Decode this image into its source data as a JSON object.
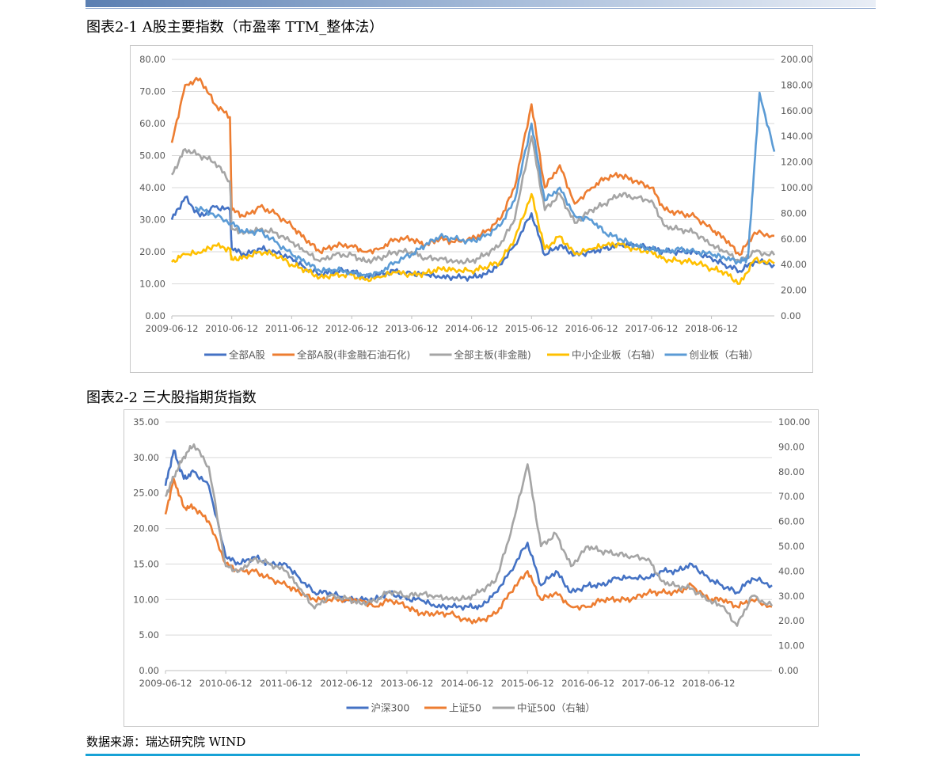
{
  "figure1": {
    "title": "图表2-1 A股主要指数（市盈率 TTM_整体法）",
    "chart_data": {
      "type": "line",
      "x_ticks": [
        "2009-06-12",
        "2010-06-12",
        "2011-06-12",
        "2012-06-12",
        "2013-06-12",
        "2014-06-12",
        "2015-06-12",
        "2016-06-12",
        "2017-06-12",
        "2018-06-12"
      ],
      "x_range": [
        "2009-06-12",
        "2019-06-30"
      ],
      "y_left": {
        "min": 0,
        "max": 80,
        "ticks": [
          "0.00",
          "10.00",
          "20.00",
          "30.00",
          "40.00",
          "50.00",
          "60.00",
          "70.00",
          "80.00"
        ]
      },
      "y_right": {
        "min": 0,
        "max": 200,
        "ticks": [
          "0.00",
          "20.00",
          "40.00",
          "60.00",
          "80.00",
          "100.00",
          "120.00",
          "140.00",
          "160.00",
          "180.00",
          "200.00"
        ]
      },
      "grid": true,
      "legend_position": "bottom",
      "series": [
        {
          "name": "全部A股",
          "axis": "left",
          "color": "#4472c4",
          "x": [
            "2009-06-12",
            "2009-09-01",
            "2009-12-01",
            "2010-03-01",
            "2010-06-01",
            "2010-06-12",
            "2010-09-01",
            "2010-12-01",
            "2011-03-01",
            "2011-06-12",
            "2011-09-01",
            "2011-12-01",
            "2012-03-01",
            "2012-06-12",
            "2012-09-01",
            "2012-12-01",
            "2013-03-01",
            "2013-06-12",
            "2013-09-01",
            "2013-12-01",
            "2014-03-01",
            "2014-06-12",
            "2014-09-01",
            "2014-12-01",
            "2015-03-01",
            "2015-06-12",
            "2015-09-01",
            "2015-12-01",
            "2016-03-01",
            "2016-06-12",
            "2016-09-01",
            "2016-12-01",
            "2017-03-01",
            "2017-06-12",
            "2017-09-01",
            "2017-12-01",
            "2018-03-01",
            "2018-06-12",
            "2018-09-01",
            "2018-12-01",
            "2019-03-01",
            "2019-06-30"
          ],
          "y": [
            30,
            37,
            31,
            34,
            33,
            21,
            19,
            21,
            20,
            18,
            15,
            13,
            14,
            14,
            12,
            13,
            14,
            13,
            13,
            12,
            12,
            12,
            13,
            16,
            22,
            32,
            19,
            22,
            19,
            20,
            21,
            22,
            22,
            21,
            20,
            20,
            20,
            18,
            16,
            14,
            17,
            16
          ]
        },
        {
          "name": "全部A股(非金融石油石化)",
          "axis": "left",
          "color": "#ed7d31",
          "x": [
            "2009-06-12",
            "2009-09-01",
            "2009-12-01",
            "2010-03-01",
            "2010-06-01",
            "2010-06-12",
            "2010-09-01",
            "2010-12-01",
            "2011-03-01",
            "2011-06-12",
            "2011-09-01",
            "2011-12-01",
            "2012-03-01",
            "2012-06-12",
            "2012-09-01",
            "2012-12-01",
            "2013-03-01",
            "2013-06-12",
            "2013-09-01",
            "2013-12-01",
            "2014-03-01",
            "2014-06-12",
            "2014-09-01",
            "2014-12-01",
            "2015-03-01",
            "2015-06-12",
            "2015-09-01",
            "2015-12-01",
            "2016-03-01",
            "2016-06-12",
            "2016-09-01",
            "2016-12-01",
            "2017-03-01",
            "2017-06-12",
            "2017-09-01",
            "2017-12-01",
            "2018-03-01",
            "2018-06-12",
            "2018-09-01",
            "2018-12-01",
            "2019-03-01",
            "2019-06-30"
          ],
          "y": [
            54,
            72,
            74,
            66,
            62,
            33,
            31,
            34,
            32,
            28,
            24,
            20,
            22,
            22,
            20,
            21,
            24,
            24,
            22,
            24,
            23,
            24,
            26,
            30,
            40,
            66,
            40,
            47,
            35,
            40,
            43,
            44,
            42,
            40,
            33,
            32,
            31,
            27,
            24,
            19,
            26,
            25
          ]
        },
        {
          "name": "全部主板(非金融)",
          "axis": "left",
          "color": "#a5a5a5",
          "x": [
            "2009-06-12",
            "2009-09-01",
            "2009-12-01",
            "2010-03-01",
            "2010-06-01",
            "2010-06-12",
            "2010-09-01",
            "2010-12-01",
            "2011-03-01",
            "2011-06-12",
            "2011-09-01",
            "2011-12-01",
            "2012-03-01",
            "2012-06-12",
            "2012-09-01",
            "2012-12-01",
            "2013-03-01",
            "2013-06-12",
            "2013-09-01",
            "2013-12-01",
            "2014-03-01",
            "2014-06-12",
            "2014-09-01",
            "2014-12-01",
            "2015-03-01",
            "2015-06-12",
            "2015-09-01",
            "2015-12-01",
            "2016-03-01",
            "2016-06-12",
            "2016-09-01",
            "2016-12-01",
            "2017-03-01",
            "2017-06-12",
            "2017-09-01",
            "2017-12-01",
            "2018-03-01",
            "2018-06-12",
            "2018-09-01",
            "2018-12-01",
            "2019-03-01",
            "2019-06-30"
          ],
          "y": [
            44,
            52,
            50,
            48,
            42,
            27,
            26,
            27,
            26,
            23,
            20,
            17,
            19,
            19,
            17,
            18,
            20,
            20,
            18,
            18,
            17,
            17,
            19,
            22,
            30,
            56,
            33,
            38,
            29,
            33,
            35,
            38,
            37,
            36,
            28,
            27,
            26,
            22,
            20,
            17,
            20,
            19
          ]
        },
        {
          "name": "中小企业板（右轴）",
          "axis": "right",
          "color": "#ffc000",
          "x": [
            "2009-06-12",
            "2009-09-01",
            "2009-12-01",
            "2010-03-01",
            "2010-06-01",
            "2010-06-12",
            "2010-09-01",
            "2010-12-01",
            "2011-03-01",
            "2011-06-12",
            "2011-09-01",
            "2011-12-01",
            "2012-03-01",
            "2012-06-12",
            "2012-09-01",
            "2012-12-01",
            "2013-03-01",
            "2013-06-12",
            "2013-09-01",
            "2013-12-01",
            "2014-03-01",
            "2014-06-12",
            "2014-09-01",
            "2014-12-01",
            "2015-03-01",
            "2015-06-12",
            "2015-09-01",
            "2015-12-01",
            "2016-03-01",
            "2016-06-12",
            "2016-09-01",
            "2016-12-01",
            "2017-03-01",
            "2017-06-12",
            "2017-09-01",
            "2017-12-01",
            "2018-03-01",
            "2018-06-12",
            "2018-09-01",
            "2018-12-01",
            "2019-03-01",
            "2019-06-30"
          ],
          "y": [
            42,
            48,
            49,
            55,
            52,
            44,
            46,
            50,
            48,
            40,
            36,
            30,
            32,
            32,
            28,
            30,
            34,
            32,
            33,
            37,
            36,
            35,
            38,
            42,
            60,
            95,
            52,
            62,
            48,
            52,
            55,
            56,
            52,
            50,
            44,
            43,
            42,
            37,
            34,
            25,
            44,
            41
          ]
        },
        {
          "name": "创业板（右轴）",
          "axis": "right",
          "color": "#5b9bd5",
          "x": [
            "2009-11-01",
            "2010-02-01",
            "2010-06-12",
            "2010-09-01",
            "2010-12-01",
            "2011-03-01",
            "2011-06-12",
            "2011-09-01",
            "2011-12-01",
            "2012-03-01",
            "2012-06-12",
            "2012-09-01",
            "2012-12-01",
            "2013-03-01",
            "2013-06-12",
            "2013-09-01",
            "2013-12-01",
            "2014-03-01",
            "2014-06-12",
            "2014-09-01",
            "2014-12-01",
            "2015-03-01",
            "2015-06-12",
            "2015-09-01",
            "2015-12-01",
            "2016-03-01",
            "2016-06-12",
            "2016-09-01",
            "2016-12-01",
            "2017-03-01",
            "2017-06-12",
            "2017-09-01",
            "2017-12-01",
            "2018-03-01",
            "2018-06-12",
            "2018-09-01",
            "2018-12-01",
            "2019-01-20",
            "2019-03-01",
            "2019-04-01",
            "2019-06-30"
          ],
          "y": [
            85,
            80,
            72,
            65,
            66,
            58,
            48,
            42,
            35,
            36,
            34,
            32,
            34,
            42,
            48,
            55,
            62,
            60,
            58,
            62,
            70,
            90,
            150,
            90,
            100,
            78,
            75,
            65,
            60,
            55,
            52,
            50,
            52,
            50,
            48,
            45,
            42,
            45,
            118,
            174,
            128
          ]
        }
      ]
    }
  },
  "figure2": {
    "title": "图表2-2 三大股指期货指数",
    "chart_data": {
      "type": "line",
      "x_ticks": [
        "2009-06-12",
        "2010-06-12",
        "2011-06-12",
        "2012-06-12",
        "2013-06-12",
        "2014-06-12",
        "2015-06-12",
        "2016-06-12",
        "2017-06-12",
        "2018-06-12"
      ],
      "x_range": [
        "2009-06-12",
        "2019-06-30"
      ],
      "y_left": {
        "min": 0,
        "max": 35,
        "ticks": [
          "0.00",
          "5.00",
          "10.00",
          "15.00",
          "20.00",
          "25.00",
          "30.00",
          "35.00"
        ]
      },
      "y_right": {
        "min": 0,
        "max": 100,
        "ticks": [
          "0.00",
          "10.00",
          "20.00",
          "30.00",
          "40.00",
          "50.00",
          "60.00",
          "70.00",
          "80.00",
          "90.00",
          "100.00"
        ]
      },
      "grid": true,
      "legend_position": "bottom",
      "series": [
        {
          "name": "沪深300",
          "axis": "left",
          "color": "#4472c4",
          "x": [
            "2009-06-12",
            "2009-08-01",
            "2009-10-01",
            "2009-12-01",
            "2010-03-01",
            "2010-06-12",
            "2010-09-01",
            "2010-12-01",
            "2011-03-01",
            "2011-06-12",
            "2011-09-01",
            "2011-12-01",
            "2012-03-01",
            "2012-06-12",
            "2012-09-01",
            "2012-12-01",
            "2013-03-01",
            "2013-06-12",
            "2013-09-01",
            "2013-12-01",
            "2014-03-01",
            "2014-06-12",
            "2014-09-01",
            "2014-12-01",
            "2015-03-01",
            "2015-06-12",
            "2015-09-01",
            "2015-12-01",
            "2016-03-01",
            "2016-06-12",
            "2016-09-01",
            "2016-12-01",
            "2017-03-01",
            "2017-06-12",
            "2017-09-01",
            "2017-12-01",
            "2018-03-01",
            "2018-06-12",
            "2018-09-01",
            "2018-12-01",
            "2019-03-01",
            "2019-06-30"
          ],
          "y": [
            26,
            31,
            27,
            28,
            26,
            16,
            15,
            16,
            15,
            15,
            13,
            11,
            11,
            10,
            10,
            10,
            11,
            10,
            10,
            9,
            9,
            9,
            9,
            11,
            14,
            18,
            12,
            14,
            11,
            12,
            12,
            13,
            13,
            13,
            14,
            14,
            15,
            13,
            12,
            11,
            13,
            12
          ]
        },
        {
          "name": "上证50",
          "axis": "left",
          "color": "#ed7d31",
          "x": [
            "2009-06-12",
            "2009-08-01",
            "2009-10-01",
            "2009-12-01",
            "2010-03-01",
            "2010-06-12",
            "2010-09-01",
            "2010-12-01",
            "2011-03-01",
            "2011-06-12",
            "2011-09-01",
            "2011-12-01",
            "2012-03-01",
            "2012-06-12",
            "2012-09-01",
            "2012-12-01",
            "2013-03-01",
            "2013-06-12",
            "2013-09-01",
            "2013-12-01",
            "2014-03-01",
            "2014-06-12",
            "2014-09-01",
            "2014-12-01",
            "2015-03-01",
            "2015-06-12",
            "2015-09-01",
            "2015-12-01",
            "2016-03-01",
            "2016-06-12",
            "2016-09-01",
            "2016-12-01",
            "2017-03-01",
            "2017-06-12",
            "2017-09-01",
            "2017-12-01",
            "2018-03-01",
            "2018-06-12",
            "2018-09-01",
            "2018-12-01",
            "2019-03-01",
            "2019-06-30"
          ],
          "y": [
            22,
            27,
            23,
            23,
            21,
            15,
            14,
            14,
            13,
            12,
            11,
            10,
            10,
            10,
            10,
            9,
            10,
            9,
            8,
            8,
            8,
            7,
            7,
            8,
            11,
            14,
            10,
            11,
            9,
            9,
            10,
            10,
            10,
            11,
            11,
            11,
            12,
            10,
            10,
            9,
            10,
            9
          ]
        },
        {
          "name": "中证500（右轴）",
          "axis": "right",
          "color": "#a5a5a5",
          "x": [
            "2009-06-12",
            "2009-08-01",
            "2009-10-01",
            "2009-12-01",
            "2010-03-01",
            "2010-06-12",
            "2010-09-01",
            "2010-12-01",
            "2011-03-01",
            "2011-06-12",
            "2011-09-01",
            "2011-12-01",
            "2012-03-01",
            "2012-06-12",
            "2012-09-01",
            "2012-12-01",
            "2013-03-01",
            "2013-06-12",
            "2013-09-01",
            "2013-12-01",
            "2014-03-01",
            "2014-06-12",
            "2014-09-01",
            "2014-12-01",
            "2015-03-01",
            "2015-06-12",
            "2015-09-01",
            "2015-12-01",
            "2016-03-01",
            "2016-06-12",
            "2016-09-01",
            "2016-12-01",
            "2017-03-01",
            "2017-06-12",
            "2017-09-01",
            "2017-12-01",
            "2018-03-01",
            "2018-06-12",
            "2018-09-01",
            "2018-12-01",
            "2019-03-01",
            "2019-06-30"
          ],
          "y": [
            70,
            78,
            86,
            91,
            82,
            42,
            40,
            45,
            43,
            40,
            33,
            25,
            30,
            29,
            27,
            28,
            32,
            30,
            31,
            30,
            29,
            29,
            32,
            36,
            55,
            83,
            50,
            55,
            42,
            50,
            48,
            47,
            46,
            45,
            36,
            34,
            33,
            28,
            26,
            18,
            30,
            26
          ]
        }
      ]
    }
  },
  "source": "数据来源：瑞达研究院 WIND"
}
